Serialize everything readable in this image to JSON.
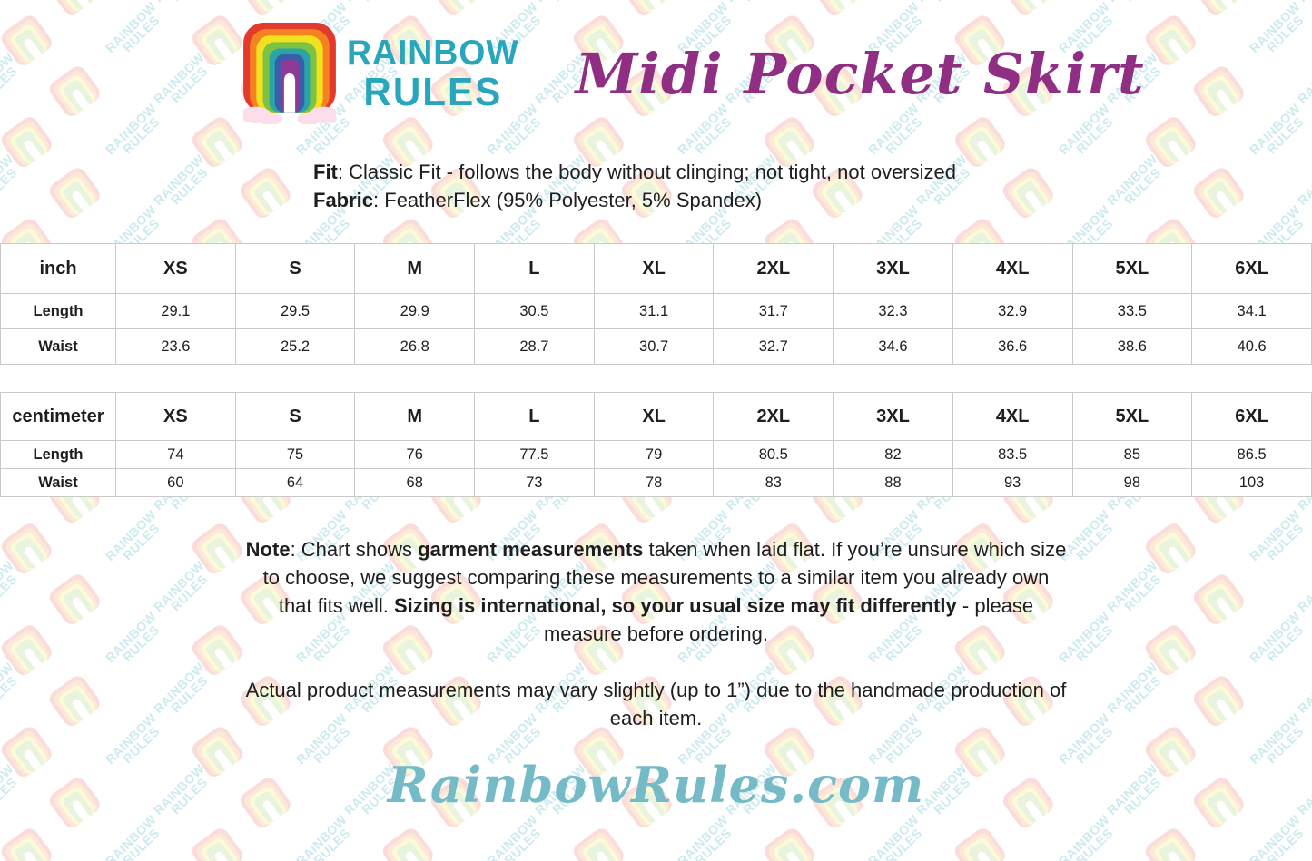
{
  "logo": {
    "line1": "RAINBOW",
    "line2": "RULES",
    "text_color": "#29a6bc"
  },
  "title": {
    "text": "Midi Pocket Skirt",
    "color": "#8f2e82"
  },
  "product_info": {
    "fit_label": "Fit",
    "fit_text": ": Classic Fit - follows the body without clinging; not tight, not oversized",
    "fabric_label": "Fabric",
    "fabric_text": ": FeatherFlex (95% Polyester, 5% Spandex)"
  },
  "size_tables": [
    {
      "unit": "inch",
      "columns": [
        "XS",
        "S",
        "M",
        "L",
        "XL",
        "2XL",
        "3XL",
        "4XL",
        "5XL",
        "6XL"
      ],
      "rows": [
        {
          "label": "Length",
          "values": [
            "29.1",
            "29.5",
            "29.9",
            "30.5",
            "31.1",
            "31.7",
            "32.3",
            "32.9",
            "33.5",
            "34.1"
          ]
        },
        {
          "label": "Waist",
          "values": [
            "23.6",
            "25.2",
            "26.8",
            "28.7",
            "30.7",
            "32.7",
            "34.6",
            "36.6",
            "38.6",
            "40.6"
          ]
        }
      ]
    },
    {
      "unit": "centimeter",
      "columns": [
        "XS",
        "S",
        "M",
        "L",
        "XL",
        "2XL",
        "3XL",
        "4XL",
        "5XL",
        "6XL"
      ],
      "rows": [
        {
          "label": "Length",
          "values": [
            "74",
            "75",
            "76",
            "77.5",
            "79",
            "80.5",
            "82",
            "83.5",
            "85",
            "86.5"
          ]
        },
        {
          "label": "Waist",
          "values": [
            "60",
            "64",
            "68",
            "73",
            "78",
            "83",
            "88",
            "93",
            "98",
            "103"
          ]
        }
      ]
    }
  ],
  "notes": {
    "note_segments": [
      {
        "text": "Note",
        "bold": true
      },
      {
        "text": ": Chart shows ",
        "bold": false
      },
      {
        "text": "garment measurements",
        "bold": true
      },
      {
        "text": " taken when laid flat. If you’re unsure which size to choose, we suggest comparing these measurements to a similar item you already own that fits well. ",
        "bold": false
      },
      {
        "text": "Sizing is international, so your usual size may fit differently",
        "bold": true
      },
      {
        "text": " - please measure before ordering.",
        "bold": false
      }
    ],
    "paragraph2": "Actual product measurements may vary slightly (up to 1”) due to the handmade production of each item."
  },
  "footer": {
    "website": "RainbowRules.com",
    "color": "#74bac7"
  },
  "watermark": {
    "line1": "RAINBOW",
    "line2": "RULES"
  },
  "colors": {
    "table_border": "#c9c9c9",
    "text": "#1e1e1e",
    "rainbow_rings": [
      "#e23b2e",
      "#f58220",
      "#f2e21e",
      "#7dc242",
      "#29a5a8",
      "#3b5eab",
      "#8e3a97"
    ],
    "cloud_pink": "#fbdeea"
  }
}
